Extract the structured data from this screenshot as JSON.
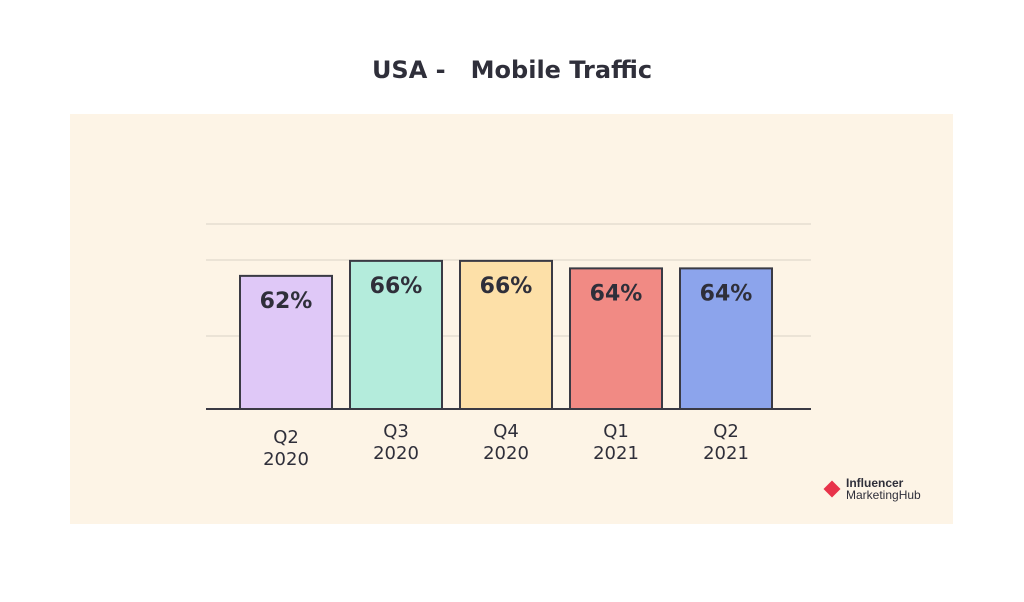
{
  "chart_data": {
    "type": "bar",
    "title": "USA -   Mobile Traffic",
    "categories": [
      [
        "Q2",
        "2020"
      ],
      [
        "Q3",
        "2020"
      ],
      [
        "Q4",
        "2020"
      ],
      [
        "Q1",
        "2021"
      ],
      [
        "Q2",
        "2021"
      ]
    ],
    "values": [
      62,
      66,
      66,
      64,
      64
    ],
    "data_labels": [
      "62%",
      "66%",
      "66%",
      "64%",
      "64%"
    ],
    "colors": [
      "#dfc8f7",
      "#b4ecdc",
      "#fde0a8",
      "#f18a84",
      "#8ca4ec"
    ],
    "xlabel": "",
    "ylabel": "",
    "grid": true,
    "legend": "none"
  },
  "logo": {
    "line1": "Influencer",
    "line2": "MarketingHub",
    "color": "#e8334a"
  }
}
